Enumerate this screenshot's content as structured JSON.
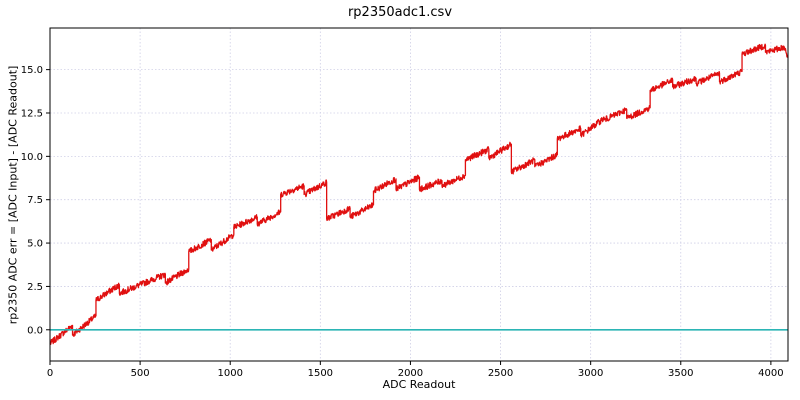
{
  "chart_data": {
    "type": "line",
    "title": "rp2350adc1.csv",
    "xlabel": "ADC Readout",
    "ylabel": "rp2350 ADC err = [ADC Input] - [ADC Readout]",
    "xlim": [
      0,
      4095
    ],
    "ylim": [
      -1.8,
      17.4
    ],
    "xticks": [
      0,
      500,
      1000,
      1500,
      2000,
      2500,
      3000,
      3500,
      4000
    ],
    "xtick_labels": [
      "0",
      "500",
      "1000",
      "1500",
      "2000",
      "2500",
      "3000",
      "3500",
      "4000"
    ],
    "yticks": [
      0.0,
      2.5,
      5.0,
      7.5,
      10.0,
      12.5,
      15.0
    ],
    "ytick_labels": [
      "0.0",
      "2.5",
      "5.0",
      "7.5",
      "10.0",
      "12.5",
      "15.0"
    ],
    "grid": true,
    "legend": "none",
    "series": [
      {
        "color": "#e01010",
        "segments": [
          {
            "x0": 0,
            "y0": -0.8,
            "x1": 125,
            "y1": 0.25
          },
          {
            "x0": 125,
            "y0": -0.3,
            "x1": 255,
            "y1": 0.8
          },
          {
            "x0": 255,
            "y0": 1.7,
            "x1": 385,
            "y1": 2.6
          },
          {
            "x0": 385,
            "y0": 2.1,
            "x1": 640,
            "y1": 3.2
          },
          {
            "x0": 640,
            "y0": 2.7,
            "x1": 770,
            "y1": 3.5
          },
          {
            "x0": 770,
            "y0": 4.5,
            "x1": 895,
            "y1": 5.2
          },
          {
            "x0": 895,
            "y0": 4.6,
            "x1": 1020,
            "y1": 5.5
          },
          {
            "x0": 1020,
            "y0": 5.9,
            "x1": 1150,
            "y1": 6.5
          },
          {
            "x0": 1150,
            "y0": 6.1,
            "x1": 1280,
            "y1": 6.8
          },
          {
            "x0": 1280,
            "y0": 7.8,
            "x1": 1410,
            "y1": 8.3
          },
          {
            "x0": 1410,
            "y0": 7.8,
            "x1": 1535,
            "y1": 8.5
          },
          {
            "x0": 1535,
            "y0": 6.4,
            "x1": 1665,
            "y1": 7.0
          },
          {
            "x0": 1665,
            "y0": 6.5,
            "x1": 1795,
            "y1": 7.2
          },
          {
            "x0": 1795,
            "y0": 8.0,
            "x1": 1920,
            "y1": 8.7
          },
          {
            "x0": 1920,
            "y0": 8.1,
            "x1": 2050,
            "y1": 8.8
          },
          {
            "x0": 2050,
            "y0": 8.1,
            "x1": 2175,
            "y1": 8.6
          },
          {
            "x0": 2175,
            "y0": 8.3,
            "x1": 2305,
            "y1": 8.9
          },
          {
            "x0": 2305,
            "y0": 9.8,
            "x1": 2435,
            "y1": 10.4
          },
          {
            "x0": 2435,
            "y0": 9.9,
            "x1": 2560,
            "y1": 10.7
          },
          {
            "x0": 2560,
            "y0": 9.1,
            "x1": 2690,
            "y1": 9.8
          },
          {
            "x0": 2690,
            "y0": 9.4,
            "x1": 2815,
            "y1": 10.1
          },
          {
            "x0": 2815,
            "y0": 11.0,
            "x1": 2945,
            "y1": 11.6
          },
          {
            "x0": 2945,
            "y0": 11.2,
            "x1": 3075,
            "y1": 12.2
          },
          {
            "x0": 3075,
            "y0": 12.1,
            "x1": 3200,
            "y1": 12.7
          },
          {
            "x0": 3200,
            "y0": 12.2,
            "x1": 3330,
            "y1": 12.8
          },
          {
            "x0": 3330,
            "y0": 13.8,
            "x1": 3455,
            "y1": 14.4
          },
          {
            "x0": 3455,
            "y0": 14.0,
            "x1": 3585,
            "y1": 14.5
          },
          {
            "x0": 3585,
            "y0": 14.2,
            "x1": 3715,
            "y1": 14.8
          },
          {
            "x0": 3715,
            "y0": 14.3,
            "x1": 3840,
            "y1": 14.9
          },
          {
            "x0": 3840,
            "y0": 15.9,
            "x1": 3970,
            "y1": 16.4
          },
          {
            "x0": 3970,
            "y0": 16.0,
            "x1": 4075,
            "y1": 16.3
          },
          {
            "x0": 4075,
            "y0": 16.3,
            "x1": 4095,
            "y1": 15.7
          }
        ]
      },
      {
        "color": "#2bb5b5",
        "points": [
          [
            0,
            0.0
          ],
          [
            4095,
            0.0
          ]
        ]
      }
    ]
  }
}
